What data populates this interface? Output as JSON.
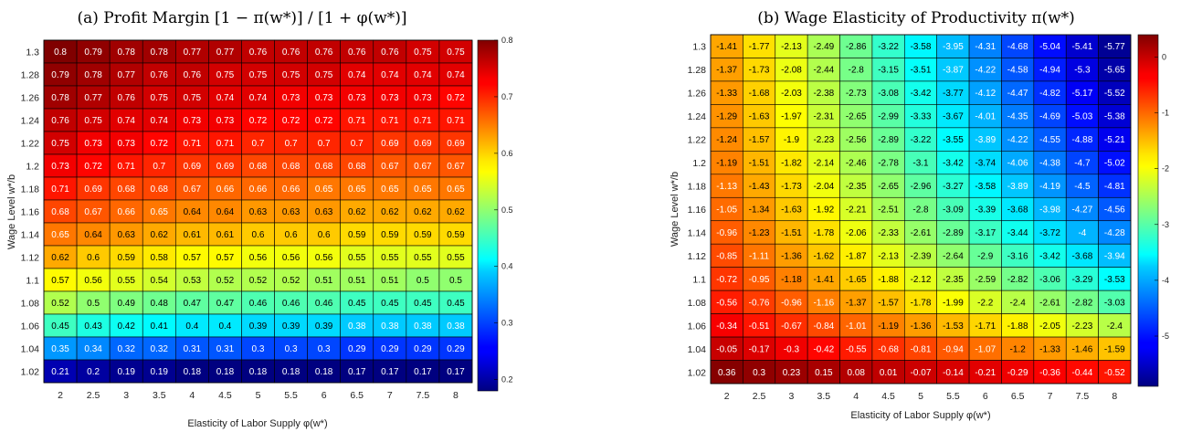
{
  "chart_data": [
    {
      "type": "heatmap",
      "title": "(a) Profit Margin [1 − π(w*)] / [1 + φ(w*)]",
      "xlabel": "Elasticity of Labor Supply φ(w*)",
      "ylabel": "Wage Level w*/b",
      "x": [
        "2",
        "2.5",
        "3",
        "3.5",
        "4",
        "4.5",
        "5",
        "5.5",
        "6",
        "6.5",
        "7",
        "7.5",
        "8"
      ],
      "y": [
        "1.3",
        "1.28",
        "1.26",
        "1.24",
        "1.22",
        "1.2",
        "1.18",
        "1.16",
        "1.14",
        "1.12",
        "1.1",
        "1.08",
        "1.06",
        "1.04",
        "1.02"
      ],
      "values": [
        [
          0.8,
          0.79,
          0.78,
          0.78,
          0.77,
          0.77,
          0.76,
          0.76,
          0.76,
          0.76,
          0.76,
          0.75,
          0.75
        ],
        [
          0.79,
          0.78,
          0.77,
          0.76,
          0.76,
          0.75,
          0.75,
          0.75,
          0.75,
          0.74,
          0.74,
          0.74,
          0.74
        ],
        [
          0.78,
          0.77,
          0.76,
          0.75,
          0.75,
          0.74,
          0.74,
          0.73,
          0.73,
          0.73,
          0.73,
          0.73,
          0.72
        ],
        [
          0.76,
          0.75,
          0.74,
          0.74,
          0.73,
          0.73,
          0.72,
          0.72,
          0.72,
          0.71,
          0.71,
          0.71,
          0.71
        ],
        [
          0.75,
          0.73,
          0.73,
          0.72,
          0.71,
          0.71,
          0.7,
          0.7,
          0.7,
          0.7,
          0.69,
          0.69,
          0.69
        ],
        [
          0.73,
          0.72,
          0.71,
          0.7,
          0.69,
          0.69,
          0.68,
          0.68,
          0.68,
          0.68,
          0.67,
          0.67,
          0.67
        ],
        [
          0.71,
          0.69,
          0.68,
          0.68,
          0.67,
          0.66,
          0.66,
          0.66,
          0.65,
          0.65,
          0.65,
          0.65,
          0.65
        ],
        [
          0.68,
          0.67,
          0.66,
          0.65,
          0.64,
          0.64,
          0.63,
          0.63,
          0.63,
          0.62,
          0.62,
          0.62,
          0.62
        ],
        [
          0.65,
          0.64,
          0.63,
          0.62,
          0.61,
          0.61,
          0.6,
          0.6,
          0.6,
          0.59,
          0.59,
          0.59,
          0.59
        ],
        [
          0.62,
          0.6,
          0.59,
          0.58,
          0.57,
          0.57,
          0.56,
          0.56,
          0.56,
          0.55,
          0.55,
          0.55,
          0.55
        ],
        [
          0.57,
          0.56,
          0.55,
          0.54,
          0.53,
          0.52,
          0.52,
          0.52,
          0.51,
          0.51,
          0.51,
          0.5,
          0.5
        ],
        [
          0.52,
          0.5,
          0.49,
          0.48,
          0.47,
          0.47,
          0.46,
          0.46,
          0.46,
          0.45,
          0.45,
          0.45,
          0.45
        ],
        [
          0.45,
          0.43,
          0.42,
          0.41,
          0.4,
          0.4,
          0.39,
          0.39,
          0.39,
          0.38,
          0.38,
          0.38,
          0.38
        ],
        [
          0.35,
          0.34,
          0.32,
          0.32,
          0.31,
          0.31,
          0.3,
          0.3,
          0.3,
          0.29,
          0.29,
          0.29,
          0.29
        ],
        [
          0.21,
          0.2,
          0.19,
          0.19,
          0.18,
          0.18,
          0.18,
          0.18,
          0.18,
          0.17,
          0.17,
          0.17,
          0.17
        ]
      ],
      "colorbar": {
        "min": 0.18,
        "max": 0.8,
        "ticks": [
          0.2,
          0.3,
          0.4,
          0.5,
          0.6,
          0.7,
          0.8
        ],
        "colormap": "jet"
      }
    },
    {
      "type": "heatmap",
      "title": "(b) Wage Elasticity of Productivity π(w*)",
      "xlabel": "Elasticity of Labor Supply φ(w*)",
      "ylabel": "Wage Level w*/b",
      "x": [
        "2",
        "2.5",
        "3",
        "3.5",
        "4",
        "4.5",
        "5",
        "5.5",
        "6",
        "6.5",
        "7",
        "7.5",
        "8"
      ],
      "y": [
        "1.3",
        "1.28",
        "1.26",
        "1.24",
        "1.22",
        "1.2",
        "1.18",
        "1.16",
        "1.14",
        "1.12",
        "1.1",
        "1.08",
        "1.06",
        "1.04",
        "1.02"
      ],
      "values": [
        [
          -1.41,
          -1.77,
          -2.13,
          -2.49,
          -2.86,
          -3.22,
          -3.58,
          -3.95,
          -4.31,
          -4.68,
          -5.04,
          -5.41,
          -5.77
        ],
        [
          -1.37,
          -1.73,
          -2.08,
          -2.44,
          -2.8,
          -3.15,
          -3.51,
          -3.87,
          -4.22,
          -4.58,
          -4.94,
          -5.3,
          -5.65
        ],
        [
          -1.33,
          -1.68,
          -2.03,
          -2.38,
          -2.73,
          -3.08,
          -3.42,
          -3.77,
          -4.12,
          -4.47,
          -4.82,
          -5.17,
          -5.52
        ],
        [
          -1.29,
          -1.63,
          -1.97,
          -2.31,
          -2.65,
          -2.99,
          -3.33,
          -3.67,
          -4.01,
          -4.35,
          -4.69,
          -5.03,
          -5.38
        ],
        [
          -1.24,
          -1.57,
          -1.9,
          -2.23,
          -2.56,
          -2.89,
          -3.22,
          -3.55,
          -3.89,
          -4.22,
          -4.55,
          -4.88,
          -5.21
        ],
        [
          -1.19,
          -1.51,
          -1.82,
          -2.14,
          -2.46,
          -2.78,
          -3.1,
          -3.42,
          -3.74,
          -4.06,
          -4.38,
          -4.7,
          -5.02
        ],
        [
          -1.13,
          -1.43,
          -1.73,
          -2.04,
          -2.35,
          -2.65,
          -2.96,
          -3.27,
          -3.58,
          -3.89,
          -4.19,
          -4.5,
          -4.81
        ],
        [
          -1.05,
          -1.34,
          -1.63,
          -1.92,
          -2.21,
          -2.51,
          -2.8,
          -3.09,
          -3.39,
          -3.68,
          -3.98,
          -4.27,
          -4.56
        ],
        [
          -0.96,
          -1.23,
          -1.51,
          -1.78,
          -2.06,
          -2.33,
          -2.61,
          -2.89,
          -3.17,
          -3.44,
          -3.72,
          -4,
          -4.28
        ],
        [
          -0.85,
          -1.11,
          -1.36,
          -1.62,
          -1.87,
          -2.13,
          -2.39,
          -2.64,
          -2.9,
          -3.16,
          -3.42,
          -3.68,
          -3.94
        ],
        [
          -0.72,
          -0.95,
          -1.18,
          -1.41,
          -1.65,
          -1.88,
          -2.12,
          -2.35,
          -2.59,
          -2.82,
          -3.06,
          -3.29,
          -3.53
        ],
        [
          -0.56,
          -0.76,
          -0.96,
          -1.16,
          -1.37,
          -1.57,
          -1.78,
          -1.99,
          -2.2,
          -2.4,
          -2.61,
          -2.82,
          -3.03
        ],
        [
          -0.34,
          -0.51,
          -0.67,
          -0.84,
          -1.01,
          -1.19,
          -1.36,
          -1.53,
          -1.71,
          -1.88,
          -2.05,
          -2.23,
          -2.4
        ],
        [
          -0.05,
          -0.17,
          -0.3,
          -0.42,
          -0.55,
          -0.68,
          -0.81,
          -0.94,
          -1.07,
          -1.2,
          -1.33,
          -1.46,
          -1.59
        ],
        [
          0.36,
          0.3,
          0.23,
          0.15,
          0.08,
          0.01,
          -0.07,
          -0.14,
          -0.21,
          -0.29,
          -0.36,
          -0.44,
          -0.52
        ]
      ],
      "colorbar": {
        "min": -5.9,
        "max": 0.4,
        "ticks": [
          0,
          -1,
          -2,
          -3,
          -4,
          -5
        ],
        "colormap": "jet"
      }
    }
  ]
}
